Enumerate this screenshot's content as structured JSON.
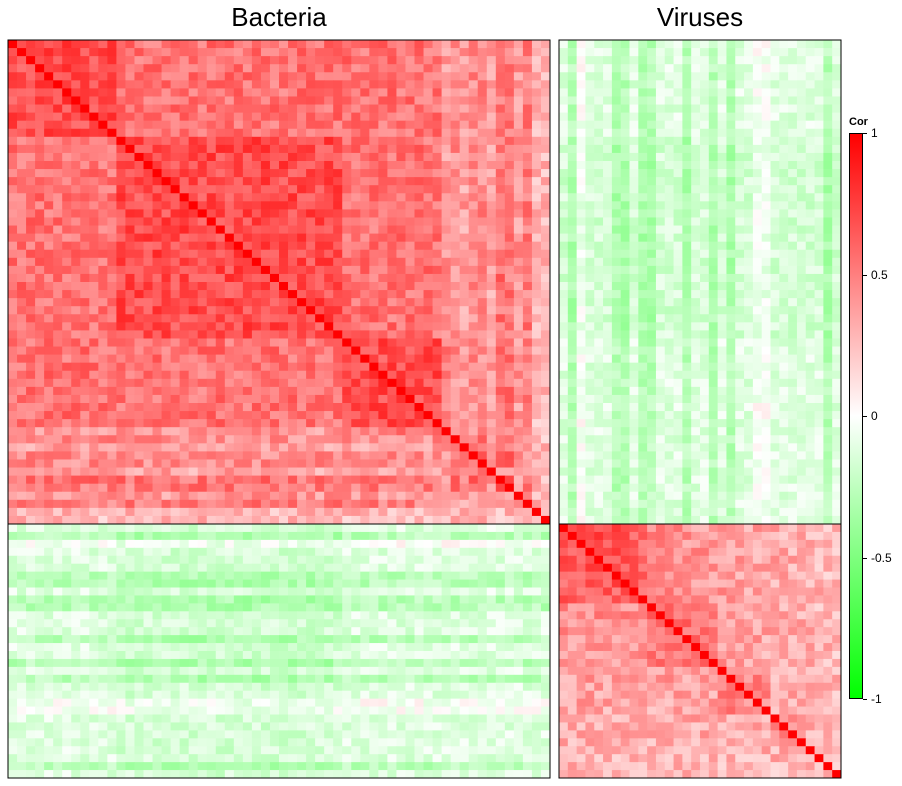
{
  "chart_data": {
    "type": "heatmap",
    "column_groups": [
      "Bacteria",
      "Viruses"
    ],
    "row_groups": [
      "Bacteria",
      "Viruses"
    ],
    "legend": {
      "title": "Cor",
      "ticks": [
        {
          "value": 1,
          "label": "1"
        },
        {
          "value": 0.5,
          "label": "0.5"
        },
        {
          "value": 0,
          "label": "0"
        },
        {
          "value": -0.5,
          "label": "-0.5"
        },
        {
          "value": -1,
          "label": "-1"
        }
      ],
      "colors": {
        "high": "#ff0000",
        "mid": "#ffffff",
        "low": "#00ff00"
      }
    },
    "panels": [
      {
        "row_group": "Bacteria",
        "col_group": "Bacteria",
        "rows": 60,
        "cols": 60,
        "mean_cor": 0.55,
        "diagonal": 1
      },
      {
        "row_group": "Bacteria",
        "col_group": "Viruses",
        "rows": 60,
        "cols": 32,
        "mean_cor": -0.12
      },
      {
        "row_group": "Viruses",
        "col_group": "Bacteria",
        "rows": 32,
        "cols": 60,
        "mean_cor": -0.12
      },
      {
        "row_group": "Viruses",
        "col_group": "Viruses",
        "rows": 32,
        "cols": 32,
        "mean_cor": 0.45,
        "diagonal": 1
      }
    ]
  }
}
